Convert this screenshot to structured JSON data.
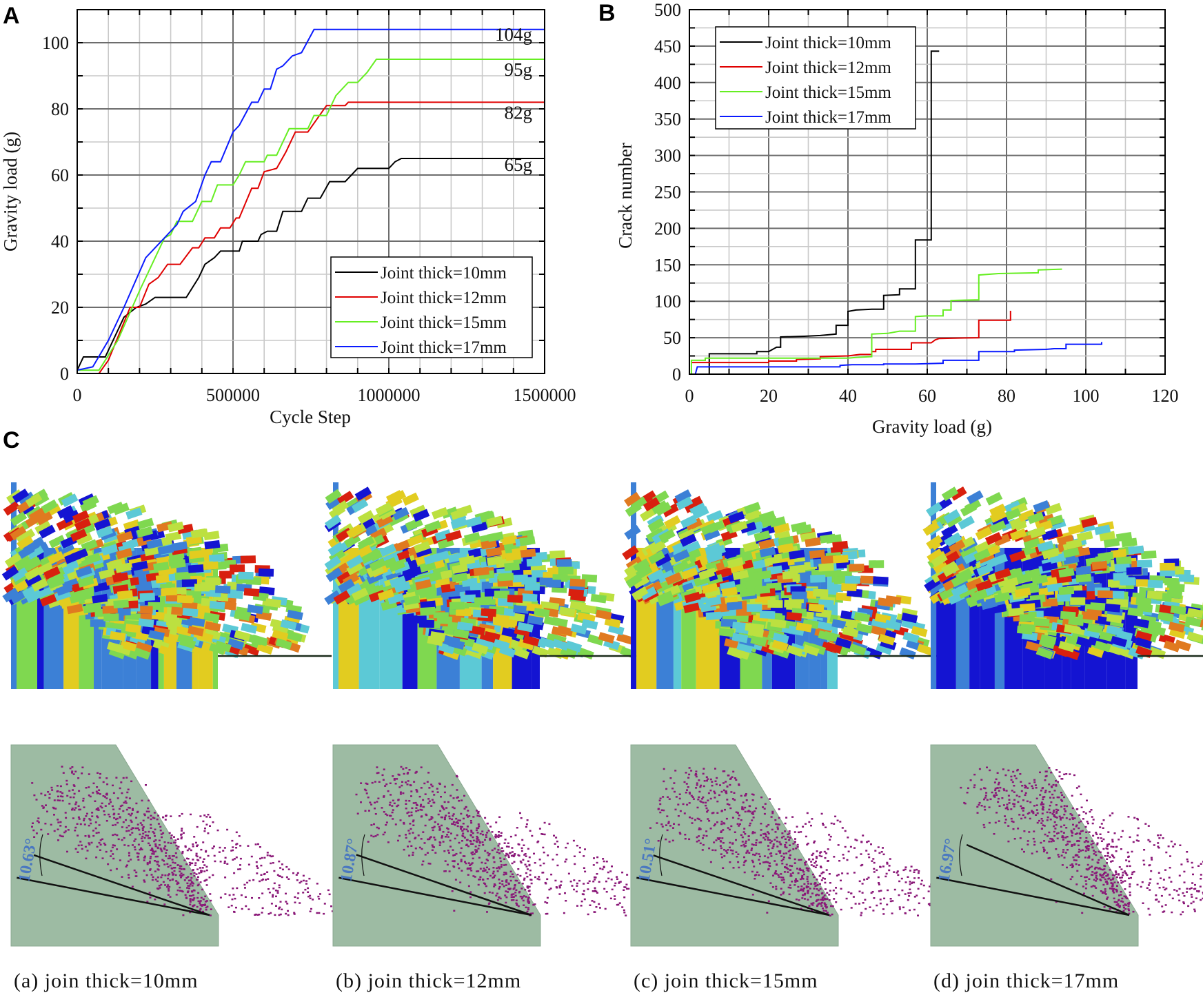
{
  "chart_data": [
    {
      "type": "line",
      "panel_label": "A",
      "title": "",
      "xlabel": "Cycle Step",
      "ylabel": "Gravity load (g)",
      "xlim": [
        0,
        1500000
      ],
      "ylim": [
        0,
        110
      ],
      "xticks": [
        0,
        500000,
        1000000,
        1500000
      ],
      "xtick_labels": [
        "0",
        "500000",
        "1000000",
        "1500000"
      ],
      "yticks": [
        0,
        20,
        40,
        60,
        80,
        100
      ],
      "ytick_labels": [
        "0",
        "20",
        "40",
        "60",
        "80",
        "100"
      ],
      "grid": true,
      "legend": "bottom-right",
      "annotations": [
        {
          "text": "104g",
          "y": 104
        },
        {
          "text": "95g",
          "y": 95
        },
        {
          "text": "82g",
          "y": 82
        },
        {
          "text": "65g",
          "y": 65
        }
      ],
      "series": [
        {
          "name": "Joint thick=10mm",
          "color": "#000000",
          "points": [
            [
              0,
              1
            ],
            [
              20000,
              5
            ],
            [
              90000,
              5
            ],
            [
              150000,
              17
            ],
            [
              190000,
              20
            ],
            [
              220000,
              21
            ],
            [
              250000,
              23
            ],
            [
              350000,
              23
            ],
            [
              390000,
              29
            ],
            [
              410000,
              33
            ],
            [
              440000,
              35
            ],
            [
              460000,
              37
            ],
            [
              520000,
              37
            ],
            [
              530000,
              40
            ],
            [
              580000,
              40
            ],
            [
              590000,
              42
            ],
            [
              610000,
              43
            ],
            [
              640000,
              43
            ],
            [
              660000,
              49
            ],
            [
              720000,
              49
            ],
            [
              740000,
              53
            ],
            [
              780000,
              53
            ],
            [
              810000,
              58
            ],
            [
              860000,
              58
            ],
            [
              900000,
              62
            ],
            [
              1000000,
              62
            ],
            [
              1020000,
              64
            ],
            [
              1040000,
              65
            ],
            [
              1500000,
              65
            ]
          ]
        },
        {
          "name": "Joint thick=12mm",
          "color": "#e00000",
          "points": [
            [
              0,
              0
            ],
            [
              70000,
              0
            ],
            [
              100000,
              4
            ],
            [
              170000,
              20
            ],
            [
              200000,
              20
            ],
            [
              230000,
              27
            ],
            [
              260000,
              29
            ],
            [
              290000,
              33
            ],
            [
              330000,
              33
            ],
            [
              370000,
              38
            ],
            [
              390000,
              38
            ],
            [
              410000,
              41
            ],
            [
              440000,
              41
            ],
            [
              460000,
              44
            ],
            [
              490000,
              44
            ],
            [
              510000,
              47
            ],
            [
              520000,
              47
            ],
            [
              560000,
              56
            ],
            [
              580000,
              56
            ],
            [
              600000,
              61
            ],
            [
              640000,
              62
            ],
            [
              670000,
              67
            ],
            [
              700000,
              73
            ],
            [
              740000,
              73
            ],
            [
              800000,
              81
            ],
            [
              860000,
              81
            ],
            [
              870000,
              82
            ],
            [
              1500000,
              82
            ]
          ]
        },
        {
          "name": "Joint thick=15mm",
          "color": "#66ee22",
          "points": [
            [
              0,
              1
            ],
            [
              70000,
              1
            ],
            [
              90000,
              4
            ],
            [
              130000,
              10
            ],
            [
              200000,
              25
            ],
            [
              280000,
              41
            ],
            [
              300000,
              42
            ],
            [
              320000,
              46
            ],
            [
              370000,
              46
            ],
            [
              400000,
              52
            ],
            [
              430000,
              52
            ],
            [
              450000,
              57
            ],
            [
              500000,
              57
            ],
            [
              520000,
              60
            ],
            [
              540000,
              64
            ],
            [
              600000,
              64
            ],
            [
              610000,
              66
            ],
            [
              640000,
              66
            ],
            [
              650000,
              68
            ],
            [
              680000,
              74
            ],
            [
              740000,
              74
            ],
            [
              760000,
              78
            ],
            [
              800000,
              78
            ],
            [
              830000,
              84
            ],
            [
              870000,
              88
            ],
            [
              900000,
              88
            ],
            [
              930000,
              91
            ],
            [
              960000,
              95
            ],
            [
              1500000,
              95
            ]
          ]
        },
        {
          "name": "Joint thick=17mm",
          "color": "#0a1aff",
          "points": [
            [
              0,
              1
            ],
            [
              50000,
              2
            ],
            [
              100000,
              10
            ],
            [
              150000,
              20
            ],
            [
              220000,
              35
            ],
            [
              250000,
              38
            ],
            [
              280000,
              41
            ],
            [
              320000,
              45
            ],
            [
              340000,
              49
            ],
            [
              380000,
              52
            ],
            [
              410000,
              60
            ],
            [
              430000,
              64
            ],
            [
              460000,
              64
            ],
            [
              500000,
              73
            ],
            [
              520000,
              75
            ],
            [
              560000,
              82
            ],
            [
              580000,
              82
            ],
            [
              600000,
              86
            ],
            [
              620000,
              86
            ],
            [
              640000,
              92
            ],
            [
              660000,
              93
            ],
            [
              690000,
              96
            ],
            [
              720000,
              97
            ],
            [
              760000,
              104
            ],
            [
              1500000,
              104
            ]
          ]
        }
      ]
    },
    {
      "type": "line",
      "panel_label": "B",
      "title": "",
      "xlabel": "Gravity load (g)",
      "ylabel": "Crack number",
      "xlim": [
        0,
        120
      ],
      "ylim": [
        0,
        500
      ],
      "xticks": [
        0,
        20,
        40,
        60,
        80,
        100,
        120
      ],
      "xtick_labels": [
        "0",
        "20",
        "40",
        "60",
        "80",
        "100",
        "120"
      ],
      "yticks": [
        0,
        50,
        100,
        150,
        200,
        250,
        300,
        350,
        400,
        450,
        500
      ],
      "ytick_labels": [
        "0",
        "50",
        "100",
        "150",
        "200",
        "250",
        "300",
        "350",
        "400",
        "450",
        "500"
      ],
      "grid": true,
      "legend": "top-left",
      "series": [
        {
          "name": "Joint thick=10mm",
          "color": "#000000",
          "points": [
            [
              5,
              0
            ],
            [
              5,
              28
            ],
            [
              17,
              28
            ],
            [
              17,
              31
            ],
            [
              20,
              31
            ],
            [
              21,
              34
            ],
            [
              22,
              37
            ],
            [
              23,
              37
            ],
            [
              23,
              51
            ],
            [
              29,
              52
            ],
            [
              33,
              53
            ],
            [
              35,
              54
            ],
            [
              37,
              55
            ],
            [
              37,
              67
            ],
            [
              40,
              67
            ],
            [
              40,
              86
            ],
            [
              42,
              88
            ],
            [
              46,
              89
            ],
            [
              49,
              89
            ],
            [
              49,
              108
            ],
            [
              53,
              109
            ],
            [
              53,
              117
            ],
            [
              57,
              117
            ],
            [
              57,
              184
            ],
            [
              61,
              184
            ],
            [
              61,
              443
            ],
            [
              63,
              443
            ]
          ]
        },
        {
          "name": "Joint thick=12mm",
          "color": "#e00000",
          "points": [
            [
              0.5,
              16
            ],
            [
              20,
              16
            ],
            [
              20,
              18
            ],
            [
              27,
              18
            ],
            [
              27,
              20
            ],
            [
              33,
              21
            ],
            [
              33,
              24
            ],
            [
              40,
              25
            ],
            [
              43,
              27
            ],
            [
              46,
              27
            ],
            [
              46,
              31
            ],
            [
              47,
              31
            ],
            [
              47,
              34
            ],
            [
              56,
              34
            ],
            [
              56,
              43
            ],
            [
              61,
              43
            ],
            [
              62,
              47
            ],
            [
              63,
              49
            ],
            [
              73,
              50
            ],
            [
              73,
              74
            ],
            [
              81,
              74
            ],
            [
              81,
              87
            ]
          ]
        },
        {
          "name": "Joint thick=15mm",
          "color": "#66ee22",
          "points": [
            [
              0.5,
              0
            ],
            [
              0.5,
              19
            ],
            [
              4,
              19
            ],
            [
              4,
              22
            ],
            [
              40,
              22
            ],
            [
              42,
              23
            ],
            [
              46,
              24
            ],
            [
              46,
              55
            ],
            [
              50,
              56
            ],
            [
              53,
              59
            ],
            [
              57,
              59
            ],
            [
              57,
              79
            ],
            [
              60,
              80
            ],
            [
              64,
              80
            ],
            [
              64,
              88
            ],
            [
              66,
              88
            ],
            [
              66,
              101
            ],
            [
              73,
              102
            ],
            [
              73,
              136
            ],
            [
              78,
              138
            ],
            [
              88,
              139
            ],
            [
              88,
              143
            ],
            [
              94,
              144
            ]
          ]
        },
        {
          "name": "Joint thick=17mm",
          "color": "#0a1aff",
          "points": [
            [
              1.5,
              0
            ],
            [
              2,
              10
            ],
            [
              38,
              10
            ],
            [
              38,
              12
            ],
            [
              41,
              13
            ],
            [
              49,
              13
            ],
            [
              49,
              14
            ],
            [
              57,
              14
            ],
            [
              64,
              15
            ],
            [
              64,
              19
            ],
            [
              73,
              19
            ],
            [
              73,
              31
            ],
            [
              82,
              31
            ],
            [
              82,
              33
            ],
            [
              90,
              34
            ],
            [
              92,
              35
            ],
            [
              95,
              35
            ],
            [
              95,
              41
            ],
            [
              104,
              41
            ],
            [
              104,
              44
            ]
          ]
        }
      ]
    }
  ],
  "panel_c": {
    "label": "C",
    "panels": [
      {
        "caption": "(a) join thick=10mm",
        "angle": "10.63°",
        "angle_deg": 10.63
      },
      {
        "caption": "(b) join thick=12mm",
        "angle": "10.87°",
        "angle_deg": 10.87
      },
      {
        "caption": "(c) join thick=15mm",
        "angle": "10.51°",
        "angle_deg": 10.51
      },
      {
        "caption": "(d) join thick=17mm",
        "angle": "16.97°",
        "angle_deg": 16.97
      }
    ]
  },
  "colors": {
    "deep_blue": "#1414d2",
    "blue": "#3c80d6",
    "cyan": "#5cc9d6",
    "green": "#7fd850",
    "yellow_green": "#bce040",
    "yellow": "#e2cc20",
    "orange": "#e07a20",
    "red": "#d8200f",
    "slope_green": "#9dbba3",
    "crack_purple": "#8a1878",
    "angle_blue": "#4a78c0"
  }
}
